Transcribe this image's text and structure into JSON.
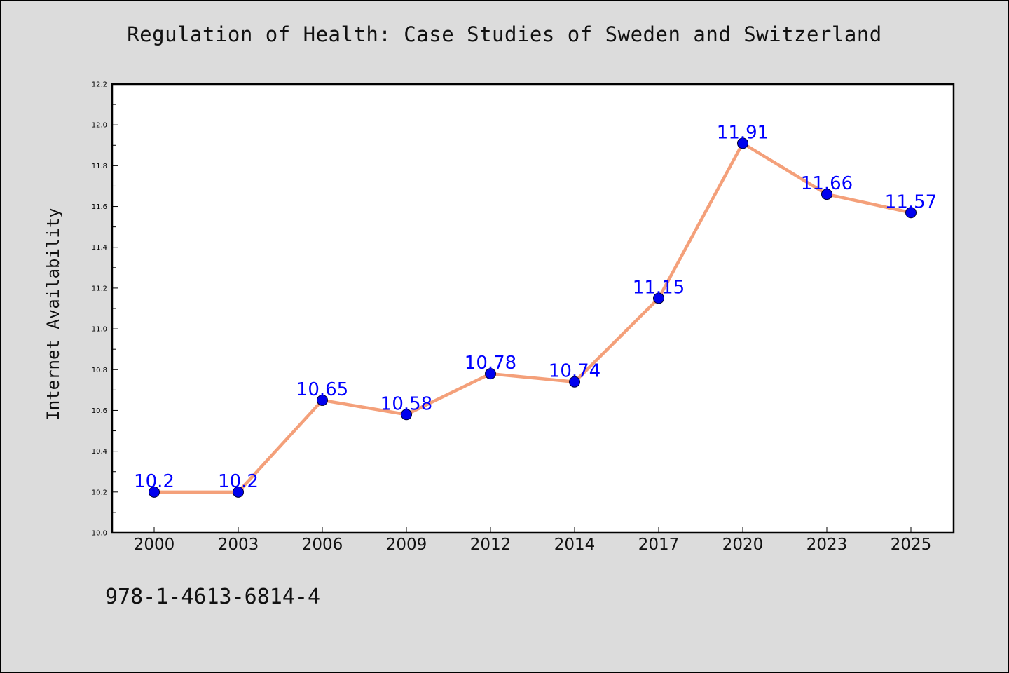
{
  "chart_data": {
    "type": "line",
    "title": "Regulation of Health: Case Studies of Sweden and Switzerland",
    "xlabel": "",
    "ylabel": "Internet Availability",
    "categories": [
      "2000",
      "2003",
      "2006",
      "2009",
      "2012",
      "2014",
      "2017",
      "2020",
      "2023",
      "2025"
    ],
    "series": [
      {
        "values": [
          10.2,
          10.2,
          10.65,
          10.58,
          10.78,
          10.74,
          11.15,
          11.91,
          11.66,
          11.57
        ],
        "data_labels": [
          "10.2",
          "10.2",
          "10.65",
          "10.58",
          "10.78",
          "10.74",
          "11.15",
          "11.91",
          "11.66",
          "11.57"
        ],
        "line_color": "#f4a07a",
        "marker_color": "#0000ee",
        "label_color": "#0000ff"
      }
    ],
    "ylim": [
      10.0,
      12.2
    ],
    "yticks": [
      "10.0",
      "10.2",
      "10.4",
      "10.6",
      "10.8",
      "11.0",
      "11.2",
      "11.4",
      "11.6",
      "11.8",
      "12.0",
      "12.2"
    ],
    "grid": false,
    "legend": "none"
  },
  "footer": {
    "isbn": "978-1-4613-6814-4"
  },
  "colors": {
    "background": "#dcdcdc",
    "plot_background": "#ffffff",
    "axis": "#000000"
  }
}
